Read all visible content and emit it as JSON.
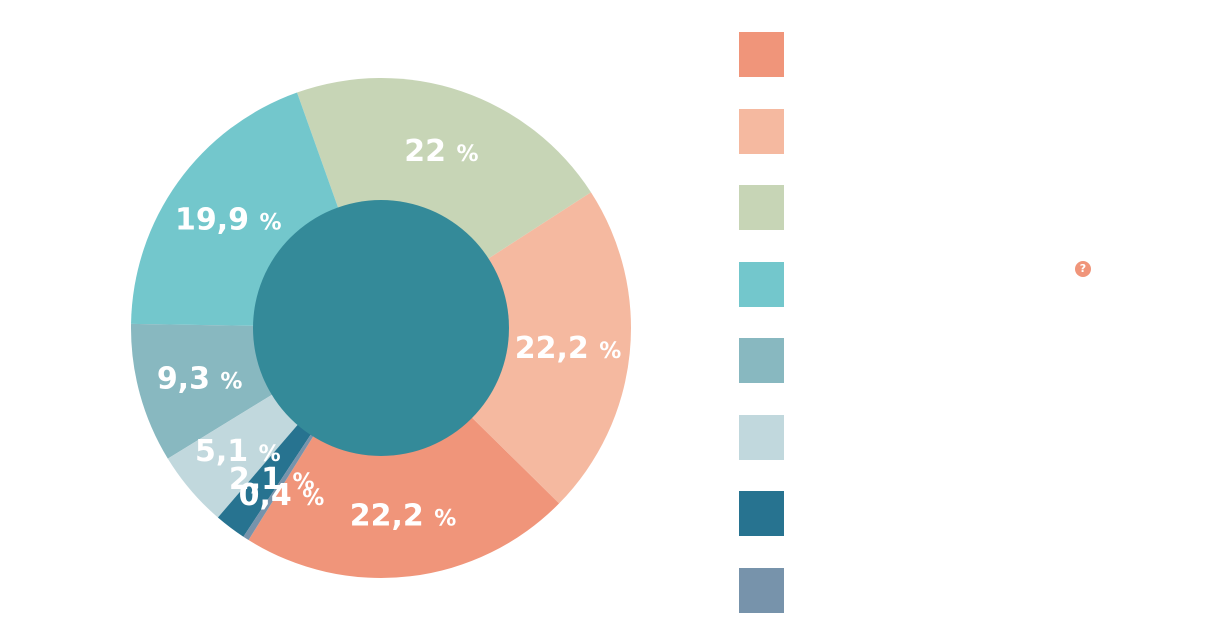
{
  "chart_data": {
    "type": "pie",
    "variant": "donut",
    "values": [
      22.2,
      22.2,
      22,
      19.9,
      9.3,
      5.1,
      2.1,
      0.4
    ],
    "labels": [
      "22,2",
      "22,2",
      "22",
      "19,9",
      "9,3",
      "5,1",
      "2,1",
      "0,4"
    ],
    "unit_suffix": "%",
    "colors": [
      "#f0957a",
      "#f5b9a0",
      "#c7d5b6",
      "#73c7cc",
      "#88b8c0",
      "#c1d8dd",
      "#277390",
      "#7793ab"
    ],
    "center_color": "#348a99",
    "legend_position": "right"
  },
  "legend": {
    "items": [
      {
        "color": "#f0957a",
        "label": ""
      },
      {
        "color": "#f5b9a0",
        "label": ""
      },
      {
        "color": "#c7d5b6",
        "label": ""
      },
      {
        "color": "#73c7cc",
        "label": ""
      },
      {
        "color": "#88b8c0",
        "label": ""
      },
      {
        "color": "#c1d8dd",
        "label": ""
      },
      {
        "color": "#277390",
        "label": ""
      },
      {
        "color": "#7793ab",
        "label": ""
      }
    ],
    "help_icon": {
      "name": "help-icon",
      "glyph": "?",
      "color": "#f0957a"
    }
  }
}
